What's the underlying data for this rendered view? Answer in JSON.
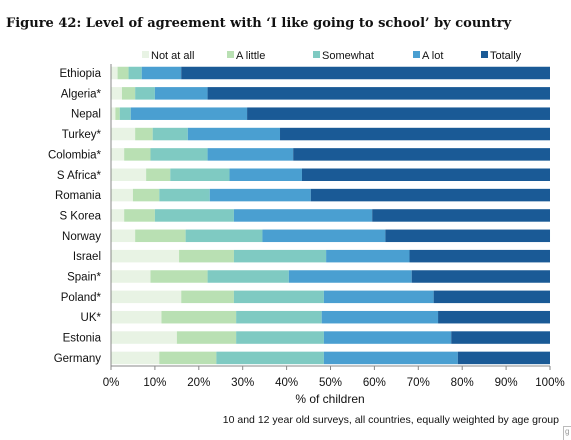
{
  "figure": {
    "title": "Figure 42: Level of agreement with ‘I like going to school’ by country",
    "footnote": "10 and 12 year old surveys, all countries, equally weighted by age group",
    "corner_mark": "g"
  },
  "chart_data": {
    "type": "bar",
    "orientation": "horizontal",
    "stacked": true,
    "percent": true,
    "categories": [
      "Ethiopia",
      "Algeria*",
      "Nepal",
      "Turkey*",
      "Colombia*",
      "S Africa*",
      "Romania",
      "S Korea",
      "Norway",
      "Israel",
      "Spain*",
      "Poland*",
      "UK*",
      "Estonia",
      "Germany"
    ],
    "series": [
      {
        "name": "Not at all",
        "color": "#e8f3e4",
        "values": [
          1.5,
          2.5,
          1.0,
          5.5,
          3.0,
          8.0,
          5.0,
          3.0,
          5.5,
          15.5,
          9.0,
          16.0,
          11.5,
          15.0,
          11.0
        ]
      },
      {
        "name": "A little",
        "color": "#b9e0b3",
        "values": [
          2.5,
          3.0,
          1.0,
          4.0,
          6.0,
          5.5,
          6.0,
          7.0,
          11.5,
          12.5,
          13.0,
          12.0,
          17.0,
          13.5,
          13.0
        ]
      },
      {
        "name": "Somewhat",
        "color": "#7fcac2",
        "values": [
          3.0,
          4.5,
          2.5,
          8.0,
          13.0,
          13.5,
          11.5,
          18.0,
          17.5,
          21.0,
          18.5,
          20.5,
          19.5,
          20.0,
          24.5
        ]
      },
      {
        "name": "A lot",
        "color": "#4a9fd1",
        "values": [
          9.0,
          12.0,
          26.5,
          21.0,
          19.5,
          16.5,
          23.0,
          31.5,
          28.0,
          19.0,
          28.0,
          25.0,
          26.5,
          29.0,
          30.5
        ]
      },
      {
        "name": "Totally",
        "color": "#1a5a96",
        "values": [
          84.0,
          78.0,
          69.0,
          61.5,
          58.5,
          56.5,
          54.5,
          40.5,
          37.5,
          32.0,
          31.5,
          26.5,
          25.5,
          22.5,
          21.0
        ]
      }
    ],
    "xlim": [
      0,
      100
    ],
    "xticks": [
      "0%",
      "10%",
      "20%",
      "30%",
      "40%",
      "50%",
      "60%",
      "70%",
      "80%",
      "90%",
      "100%"
    ],
    "xlabel": "% of children",
    "legend_position": "top",
    "grid": false
  }
}
